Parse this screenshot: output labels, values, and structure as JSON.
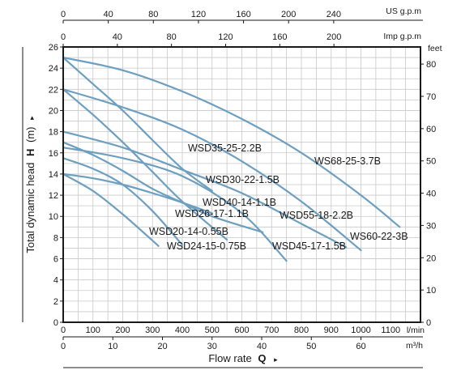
{
  "chart_data": {
    "type": "line",
    "ylabel": "Total dynamic head",
    "ylabel_symbol": "H",
    "ylabel_unit": "(m)",
    "ylabel_arrow": "▸",
    "xlabel": "Flow rate",
    "xlabel_symbol": "Q",
    "xlabel_arrow": "▸",
    "xlim_l_per_min": [
      0,
      1200
    ],
    "ylim_m": [
      0,
      26
    ],
    "grid": true,
    "axes": {
      "us_gpm": {
        "unit": "US g.p.m",
        "ticks": [
          "0",
          "40",
          "80",
          "120",
          "160",
          "200",
          "240"
        ],
        "values": [
          0,
          40,
          80,
          120,
          160,
          200,
          240
        ]
      },
      "imp_gpm": {
        "unit": "Imp g.p.m",
        "ticks": [
          "0",
          "40",
          "80",
          "120",
          "160",
          "200"
        ],
        "values": [
          0,
          40,
          80,
          120,
          160,
          200
        ]
      },
      "l_per_min": {
        "unit": "l/min",
        "ticks": [
          "0",
          "100",
          "200",
          "300",
          "400",
          "500",
          "600",
          "700",
          "800",
          "900",
          "1000",
          "1100"
        ],
        "values": [
          0,
          100,
          200,
          300,
          400,
          500,
          600,
          700,
          800,
          900,
          1000,
          1100
        ]
      },
      "m3_per_h": {
        "unit": "m³/h",
        "ticks": [
          "0",
          "10",
          "20",
          "30",
          "40",
          "50",
          "60"
        ],
        "values": [
          0,
          10,
          20,
          30,
          40,
          50,
          60
        ]
      },
      "head_m": {
        "ticks": [
          "0",
          "2",
          "4",
          "6",
          "8",
          "10",
          "12",
          "14",
          "16",
          "18",
          "20",
          "22",
          "24",
          "26"
        ],
        "values": [
          0,
          2,
          4,
          6,
          8,
          10,
          12,
          14,
          16,
          18,
          20,
          22,
          24,
          26
        ]
      },
      "head_feet": {
        "unit": "feet",
        "ticks": [
          "0",
          "10",
          "20",
          "30",
          "40",
          "50",
          "60",
          "70",
          "80"
        ],
        "values": [
          0,
          10,
          20,
          30,
          40,
          50,
          60,
          70,
          80
        ]
      }
    },
    "series": [
      {
        "name": "WSD35-25-2.2B",
        "x": [
          0,
          100,
          200,
          300,
          400,
          500
        ],
        "y": [
          25,
          22.5,
          20,
          17.2,
          14.5,
          12.4
        ]
      },
      {
        "name": "WS68-25-3.7B",
        "x": [
          0,
          200,
          400,
          600,
          800,
          1000,
          1130
        ],
        "y": [
          25,
          23.8,
          21.8,
          19.2,
          16,
          12,
          9
        ]
      },
      {
        "name": "WSD30-22-1.5B",
        "x": [
          0,
          100,
          200,
          300,
          400,
          550
        ],
        "y": [
          22,
          19.6,
          17,
          14.2,
          11.4,
          7.8
        ]
      },
      {
        "name": "WS60-22-3B",
        "x": [
          0,
          200,
          400,
          600,
          800,
          1000
        ],
        "y": [
          22,
          20.3,
          18.2,
          15.2,
          11.4,
          6.8
        ]
      },
      {
        "name": "WSD40-14-1.1B",
        "x": [
          0,
          100,
          200,
          300,
          400,
          500
        ],
        "y": [
          14,
          13.6,
          13,
          12.2,
          11.3,
          10.3
        ]
      },
      {
        "name": "WSD55-18-2.2B",
        "x": [
          0,
          200,
          400,
          600,
          800,
          950
        ],
        "y": [
          18,
          16.5,
          14.4,
          12.2,
          9.3,
          7.1
        ]
      },
      {
        "name": "WSD26-17-1.1B",
        "x": [
          0,
          100,
          200,
          300,
          400,
          500,
          670
        ],
        "y": [
          17,
          15.8,
          14.3,
          12.6,
          11.3,
          10,
          8.5
        ]
      },
      {
        "name": "WSD20-14-0.55B",
        "x": [
          0,
          100,
          200,
          320
        ],
        "y": [
          14,
          12.4,
          10.2,
          7.2
        ]
      },
      {
        "name": "WSD24-15-0.75B",
        "x": [
          0,
          100,
          200,
          300,
          400
        ],
        "y": [
          15.5,
          14.5,
          13,
          10.5,
          7.3
        ]
      },
      {
        "name": "WSD45-17-1.5B",
        "x": [
          0,
          200,
          400,
          600,
          750
        ],
        "y": [
          16.5,
          15.5,
          13.8,
          10.3,
          5.8
        ]
      }
    ]
  }
}
